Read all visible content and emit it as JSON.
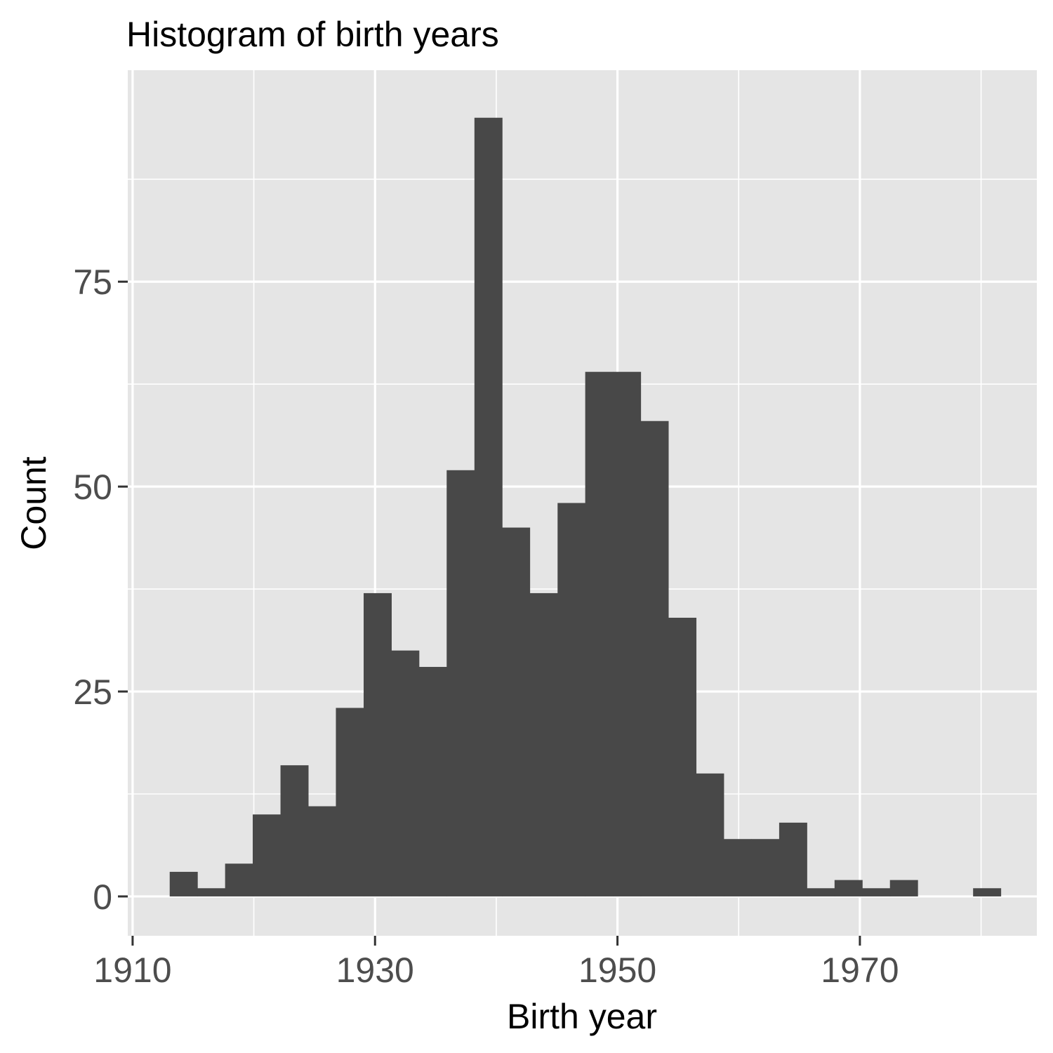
{
  "colors": {
    "panel_background": "#e5e5e5",
    "grid_line": "#ffffff",
    "bar_fill": "#484848",
    "tick_mark": "#333333",
    "tick_label": "#4d4d4d",
    "text": "#000000"
  },
  "chart_data": {
    "type": "bar",
    "title": "Histogram of birth years",
    "xlabel": "Birth year",
    "ylabel": "Count",
    "grid": true,
    "legend": "none",
    "xlim": [
      1909.6,
      1984.6
    ],
    "ylim": [
      -4.8,
      100.8
    ],
    "x_ticks": [
      1910,
      1930,
      1950,
      1970
    ],
    "x_tick_labels": [
      "1910",
      "1930",
      "1950",
      "1970"
    ],
    "y_ticks": [
      0,
      25,
      50,
      75
    ],
    "y_tick_labels": [
      "0",
      "25",
      "50",
      "75"
    ],
    "bin_width": 2.285,
    "bins": [
      {
        "x_start": 1913.06,
        "count": 3
      },
      {
        "x_start": 1915.34,
        "count": 1
      },
      {
        "x_start": 1917.63,
        "count": 4
      },
      {
        "x_start": 1919.91,
        "count": 10
      },
      {
        "x_start": 1922.2,
        "count": 16
      },
      {
        "x_start": 1924.48,
        "count": 11
      },
      {
        "x_start": 1926.77,
        "count": 23
      },
      {
        "x_start": 1929.06,
        "count": 37
      },
      {
        "x_start": 1931.34,
        "count": 30
      },
      {
        "x_start": 1933.63,
        "count": 28
      },
      {
        "x_start": 1935.91,
        "count": 52
      },
      {
        "x_start": 1938.2,
        "count": 95
      },
      {
        "x_start": 1940.48,
        "count": 45
      },
      {
        "x_start": 1942.77,
        "count": 37
      },
      {
        "x_start": 1945.06,
        "count": 48
      },
      {
        "x_start": 1947.34,
        "count": 64
      },
      {
        "x_start": 1949.63,
        "count": 64
      },
      {
        "x_start": 1951.91,
        "count": 58
      },
      {
        "x_start": 1954.2,
        "count": 34
      },
      {
        "x_start": 1956.48,
        "count": 15
      },
      {
        "x_start": 1958.77,
        "count": 7
      },
      {
        "x_start": 1961.06,
        "count": 7
      },
      {
        "x_start": 1963.34,
        "count": 9
      },
      {
        "x_start": 1965.63,
        "count": 1
      },
      {
        "x_start": 1967.91,
        "count": 2
      },
      {
        "x_start": 1970.2,
        "count": 1
      },
      {
        "x_start": 1972.48,
        "count": 2
      },
      {
        "x_start": 1974.77,
        "count": 0
      },
      {
        "x_start": 1977.06,
        "count": 0
      },
      {
        "x_start": 1979.34,
        "count": 1
      }
    ]
  }
}
